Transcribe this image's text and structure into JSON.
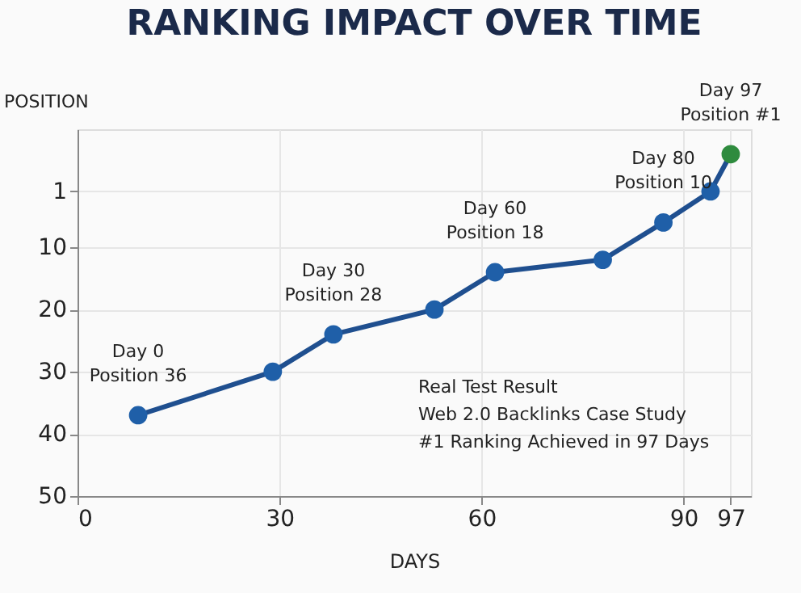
{
  "chart_data": {
    "type": "line",
    "title": "RANKING IMPACT OVER TIME",
    "xlabel": "DAYS",
    "ylabel": "POSITION",
    "x": [
      9,
      29,
      38,
      53,
      62,
      78,
      87,
      94,
      97
    ],
    "values": [
      37,
      30,
      24,
      20,
      14,
      12,
      6,
      1,
      -5
    ],
    "color": "#1f4f8f",
    "colors": [
      "#1f5fa8",
      "#1f5fa8",
      "#1f5fa8",
      "#1f5fa8",
      "#1f5fa8",
      "#1f5fa8",
      "#1f5fa8",
      "#1f5fa8",
      "#2e8b3e"
    ],
    "xlim": [
      0,
      100
    ],
    "xticks": [
      0,
      30,
      60,
      90,
      97
    ],
    "ylim": [
      50,
      -9
    ],
    "yticks": [
      1,
      10,
      20,
      30,
      40,
      50
    ],
    "grid": true,
    "marker": "circle",
    "line_style": "solid",
    "annotations": [
      {
        "text": "Day 0\nPosition 36",
        "x": 9,
        "y": 37
      },
      {
        "text": "Day 30\nPosition 28",
        "x": 38,
        "y": 24
      },
      {
        "text": "Day 60\nPosition 18",
        "x": 62,
        "y": 14
      },
      {
        "text": "Day 80\nPosition 10",
        "x": 87,
        "y": 6
      },
      {
        "text": "Day 97\nPosition #1",
        "x": 97,
        "y": -5
      },
      "Real Test Result\nWeb 2.0 Backlinks Case Study\n#1 Ranking Achieved in 97 Days"
    ]
  }
}
